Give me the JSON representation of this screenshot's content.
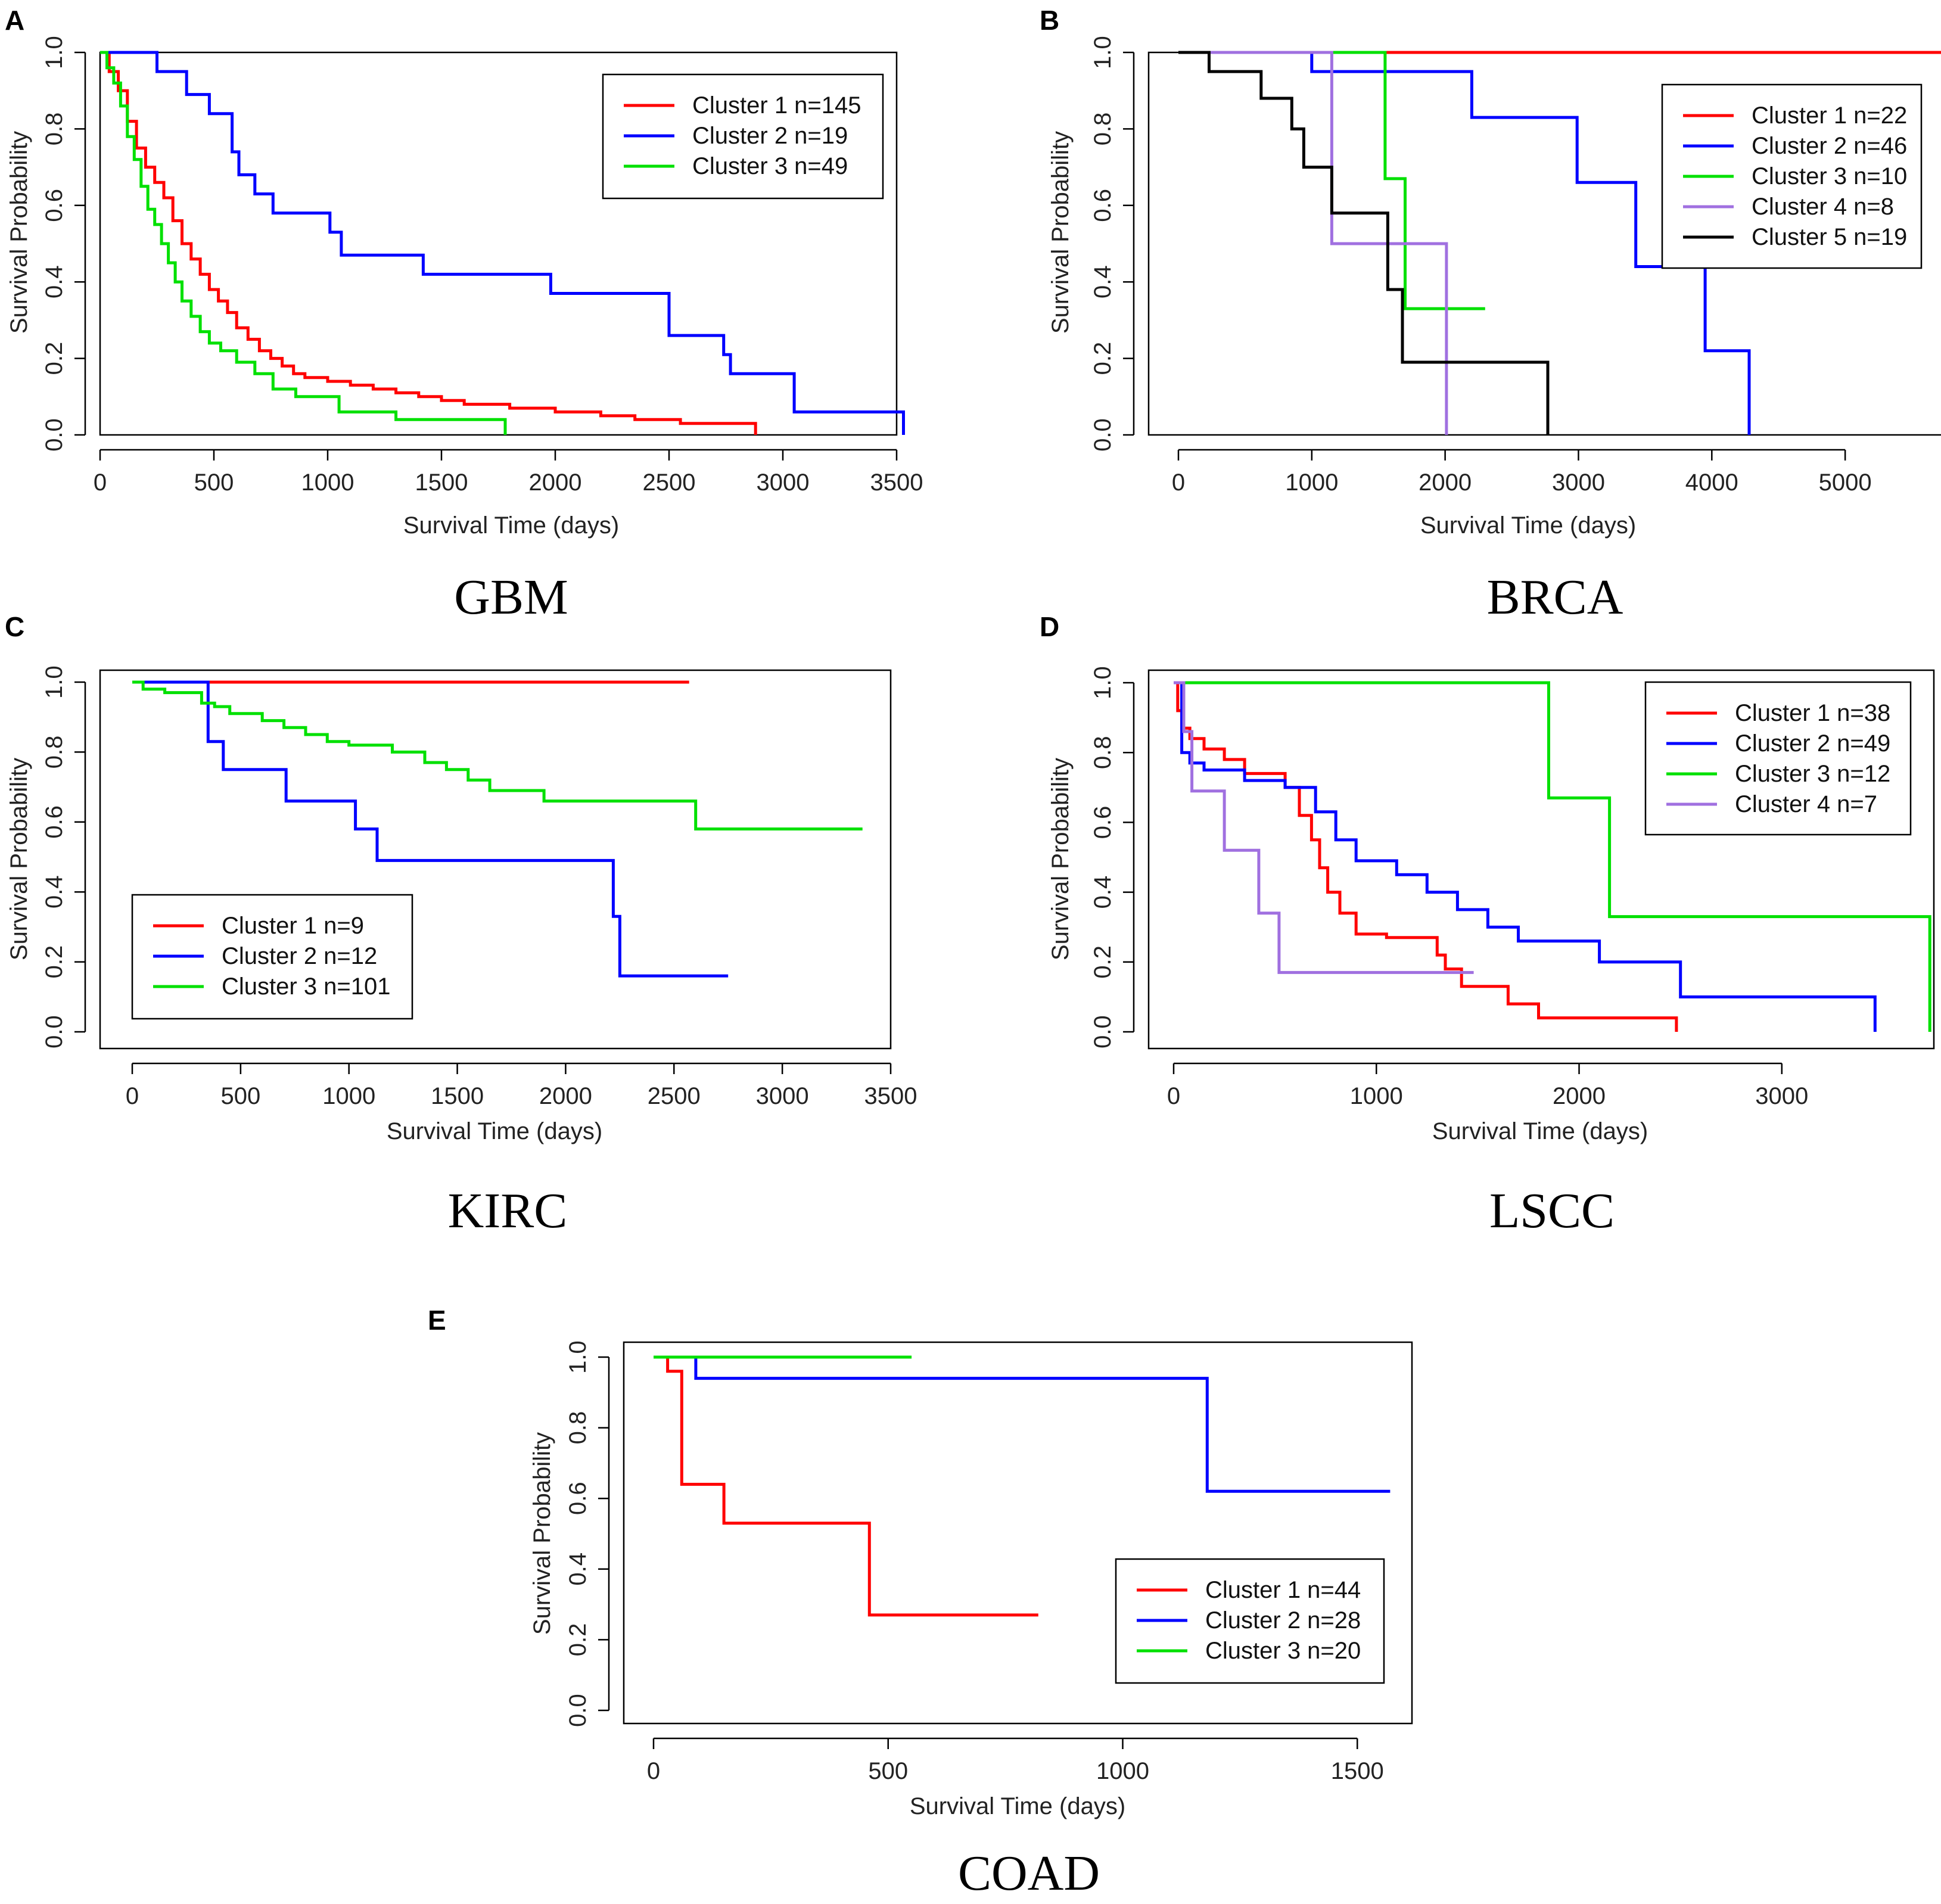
{
  "colors": {
    "red": "#ff0000",
    "blue": "#0000ff",
    "green": "#00e000",
    "purple": "#a070e0",
    "black": "#000000",
    "axis": "#000000"
  },
  "chart_data": [
    {
      "type": "line",
      "panel_letter": "A",
      "title": "GBM",
      "xlabel": "Survival Time (days)",
      "ylabel": "Survival Probability",
      "xlim": [
        0,
        3500
      ],
      "ylim": [
        0,
        1.0
      ],
      "xticks": [
        0,
        500,
        1000,
        1500,
        2000,
        2500,
        3000,
        3500
      ],
      "xtick_labels": [
        "0",
        "500",
        "1000",
        "1500",
        "2000",
        "2500",
        "3000",
        "3500"
      ],
      "yticks": [
        0,
        0.2,
        0.4,
        0.6,
        0.8,
        1.0
      ],
      "ytick_labels": [
        "0.0",
        "0.2",
        "0.4",
        "0.6",
        "0.8",
        "1.0"
      ],
      "legend_position": "top-right",
      "series": [
        {
          "name": "Cluster 1 n=145",
          "color": "red",
          "x": [
            0,
            40,
            80,
            120,
            160,
            200,
            240,
            280,
            320,
            360,
            400,
            440,
            480,
            520,
            560,
            600,
            650,
            700,
            750,
            800,
            850,
            900,
            1000,
            1100,
            1200,
            1300,
            1400,
            1500,
            1600,
            1800,
            2000,
            2200,
            2350,
            2550,
            2750,
            2880
          ],
          "y": [
            1.0,
            0.95,
            0.9,
            0.82,
            0.75,
            0.7,
            0.66,
            0.62,
            0.56,
            0.5,
            0.46,
            0.42,
            0.38,
            0.35,
            0.32,
            0.28,
            0.25,
            0.22,
            0.2,
            0.18,
            0.16,
            0.15,
            0.14,
            0.13,
            0.12,
            0.11,
            0.1,
            0.09,
            0.08,
            0.07,
            0.06,
            0.05,
            0.04,
            0.03,
            0.03,
            0.0
          ]
        },
        {
          "name": "Cluster 2 n=19",
          "color": "blue",
          "x": [
            0,
            250,
            380,
            480,
            580,
            610,
            680,
            760,
            1010,
            1060,
            1420,
            1980,
            2500,
            2740,
            2770,
            3050,
            3530
          ],
          "y": [
            1.0,
            0.95,
            0.89,
            0.84,
            0.74,
            0.68,
            0.63,
            0.58,
            0.53,
            0.47,
            0.42,
            0.37,
            0.26,
            0.21,
            0.16,
            0.06,
            0.0
          ]
        },
        {
          "name": "Cluster 3 n=49",
          "color": "green",
          "x": [
            0,
            30,
            60,
            90,
            120,
            150,
            180,
            210,
            240,
            270,
            300,
            330,
            360,
            400,
            440,
            480,
            530,
            600,
            680,
            760,
            860,
            1050,
            1300,
            1500,
            1780
          ],
          "y": [
            1.0,
            0.96,
            0.92,
            0.86,
            0.78,
            0.72,
            0.65,
            0.59,
            0.55,
            0.5,
            0.45,
            0.4,
            0.35,
            0.31,
            0.27,
            0.24,
            0.22,
            0.19,
            0.16,
            0.12,
            0.1,
            0.06,
            0.04,
            0.04,
            0.0
          ]
        }
      ]
    },
    {
      "type": "line",
      "panel_letter": "B",
      "title": "BRCA",
      "xlabel": "Survival Time (days)",
      "ylabel": "Survival Probability",
      "xlim": [
        0,
        5750
      ],
      "ylim": [
        0,
        1.0
      ],
      "xticks": [
        0,
        1000,
        2000,
        3000,
        4000,
        5000
      ],
      "xtick_labels": [
        "0",
        "1000",
        "2000",
        "3000",
        "4000",
        "5000"
      ],
      "yticks": [
        0,
        0.2,
        0.4,
        0.6,
        0.8,
        1.0
      ],
      "ytick_labels": [
        "0.0",
        "0.2",
        "0.4",
        "0.6",
        "0.8",
        "1.0"
      ],
      "legend_position": "top-right",
      "series": [
        {
          "name": "Cluster 1 n=22",
          "color": "red",
          "x": [
            0,
            5730
          ],
          "y": [
            1.0,
            1.0
          ]
        },
        {
          "name": "Cluster 2 n=46",
          "color": "blue",
          "x": [
            0,
            1000,
            2200,
            2990,
            3430,
            3950,
            4280
          ],
          "y": [
            1.0,
            0.95,
            0.83,
            0.66,
            0.44,
            0.22,
            0.0
          ]
        },
        {
          "name": "Cluster 3 n=10",
          "color": "green",
          "x": [
            0,
            1550,
            1700,
            2300
          ],
          "y": [
            1.0,
            0.67,
            0.33,
            0.33
          ]
        },
        {
          "name": "Cluster 4 n=8",
          "color": "purple",
          "x": [
            0,
            1150,
            2010
          ],
          "y": [
            1.0,
            0.5,
            0.0
          ]
        },
        {
          "name": "Cluster 5 n=19",
          "color": "black",
          "x": [
            0,
            230,
            620,
            850,
            940,
            1150,
            1570,
            1680,
            2770
          ],
          "y": [
            1.0,
            0.95,
            0.88,
            0.8,
            0.7,
            0.58,
            0.38,
            0.19,
            0.0
          ]
        }
      ]
    },
    {
      "type": "line",
      "panel_letter": "C",
      "title": "KIRC",
      "xlabel": "Survival Time (days)",
      "ylabel": "Survival Probability",
      "xlim": [
        0,
        3500
      ],
      "ylim": [
        0,
        1.0
      ],
      "xticks": [
        0,
        500,
        1000,
        1500,
        2000,
        2500,
        3000,
        3500
      ],
      "xtick_labels": [
        "0",
        "500",
        "1000",
        "1500",
        "2000",
        "2500",
        "3000",
        "3500"
      ],
      "yticks": [
        0,
        0.2,
        0.4,
        0.6,
        0.8,
        1.0
      ],
      "ytick_labels": [
        "0.0",
        "0.2",
        "0.4",
        "0.6",
        "0.8",
        "1.0"
      ],
      "legend_position": "bottom-left",
      "series": [
        {
          "name": "Cluster 1 n=9",
          "color": "red",
          "x": [
            0,
            2570
          ],
          "y": [
            1.0,
            1.0
          ]
        },
        {
          "name": "Cluster 2 n=12",
          "color": "blue",
          "x": [
            0,
            350,
            420,
            710,
            1030,
            1130,
            2220,
            2250,
            2750
          ],
          "y": [
            1.0,
            0.83,
            0.75,
            0.66,
            0.58,
            0.49,
            0.33,
            0.16,
            0.16
          ]
        },
        {
          "name": "Cluster 3 n=101",
          "color": "green",
          "x": [
            0,
            50,
            150,
            320,
            380,
            450,
            600,
            700,
            800,
            900,
            1000,
            1200,
            1350,
            1450,
            1550,
            1650,
            1900,
            2600,
            3370
          ],
          "y": [
            1.0,
            0.98,
            0.97,
            0.94,
            0.93,
            0.91,
            0.89,
            0.87,
            0.85,
            0.83,
            0.82,
            0.8,
            0.77,
            0.75,
            0.72,
            0.69,
            0.66,
            0.58,
            0.58
          ]
        }
      ]
    },
    {
      "type": "line",
      "panel_letter": "D",
      "title": "LSCC",
      "xlabel": "Survival Time (days)",
      "ylabel": "Survival Probability",
      "xlim": [
        0,
        3750
      ],
      "ylim": [
        0,
        1.0
      ],
      "xticks": [
        0,
        1000,
        2000,
        3000
      ],
      "xtick_labels": [
        "0",
        "1000",
        "2000",
        "3000"
      ],
      "yticks": [
        0,
        0.2,
        0.4,
        0.6,
        0.8,
        1.0
      ],
      "ytick_labels": [
        "0.0",
        "0.2",
        "0.4",
        "0.6",
        "0.8",
        "1.0"
      ],
      "legend_position": "top-right",
      "series": [
        {
          "name": "Cluster 1 n=38",
          "color": "red",
          "x": [
            0,
            20,
            40,
            80,
            150,
            250,
            350,
            550,
            620,
            680,
            720,
            760,
            820,
            900,
            1050,
            1300,
            1340,
            1420,
            1650,
            1800,
            2480
          ],
          "y": [
            1.0,
            0.92,
            0.87,
            0.84,
            0.81,
            0.78,
            0.74,
            0.7,
            0.62,
            0.55,
            0.47,
            0.4,
            0.34,
            0.28,
            0.27,
            0.22,
            0.18,
            0.13,
            0.08,
            0.04,
            0.0
          ]
        },
        {
          "name": "Cluster 2 n=49",
          "color": "blue",
          "x": [
            0,
            40,
            80,
            150,
            350,
            550,
            700,
            800,
            900,
            1100,
            1250,
            1400,
            1550,
            1700,
            2100,
            2500,
            3460
          ],
          "y": [
            1.0,
            0.8,
            0.77,
            0.75,
            0.72,
            0.7,
            0.63,
            0.55,
            0.49,
            0.45,
            0.4,
            0.35,
            0.3,
            0.26,
            0.2,
            0.1,
            0.0
          ]
        },
        {
          "name": "Cluster 3 n=12",
          "color": "green",
          "x": [
            0,
            1850,
            2150,
            3730
          ],
          "y": [
            1.0,
            0.67,
            0.33,
            0.0
          ]
        },
        {
          "name": "Cluster 4 n=7",
          "color": "purple",
          "x": [
            0,
            50,
            90,
            250,
            420,
            520,
            1480
          ],
          "y": [
            1.0,
            0.86,
            0.69,
            0.52,
            0.34,
            0.17,
            0.17
          ]
        }
      ]
    },
    {
      "type": "line",
      "panel_letter": "E",
      "title": "COAD",
      "xlabel": "Survival Time (days)",
      "ylabel": "Survival Probability",
      "xlim": [
        0,
        1600
      ],
      "ylim": [
        0,
        1.0
      ],
      "xticks": [
        0,
        500,
        1000,
        1500
      ],
      "xtick_labels": [
        "0",
        "500",
        "1000",
        "1500"
      ],
      "yticks": [
        0,
        0.2,
        0.4,
        0.6,
        0.8,
        1.0
      ],
      "ytick_labels": [
        "0.0",
        "0.2",
        "0.4",
        "0.6",
        "0.8",
        "1.0"
      ],
      "legend_position": "bottom-right",
      "series": [
        {
          "name": "Cluster 1 n=44",
          "color": "red",
          "x": [
            0,
            30,
            60,
            150,
            460,
            820
          ],
          "y": [
            1.0,
            0.96,
            0.64,
            0.53,
            0.27,
            0.27
          ]
        },
        {
          "name": "Cluster 2 n=28",
          "color": "blue",
          "x": [
            0,
            90,
            1180,
            1570
          ],
          "y": [
            1.0,
            0.94,
            0.62,
            0.62
          ]
        },
        {
          "name": "Cluster 3 n=20",
          "color": "green",
          "x": [
            0,
            550
          ],
          "y": [
            1.0,
            1.0
          ]
        }
      ]
    }
  ]
}
